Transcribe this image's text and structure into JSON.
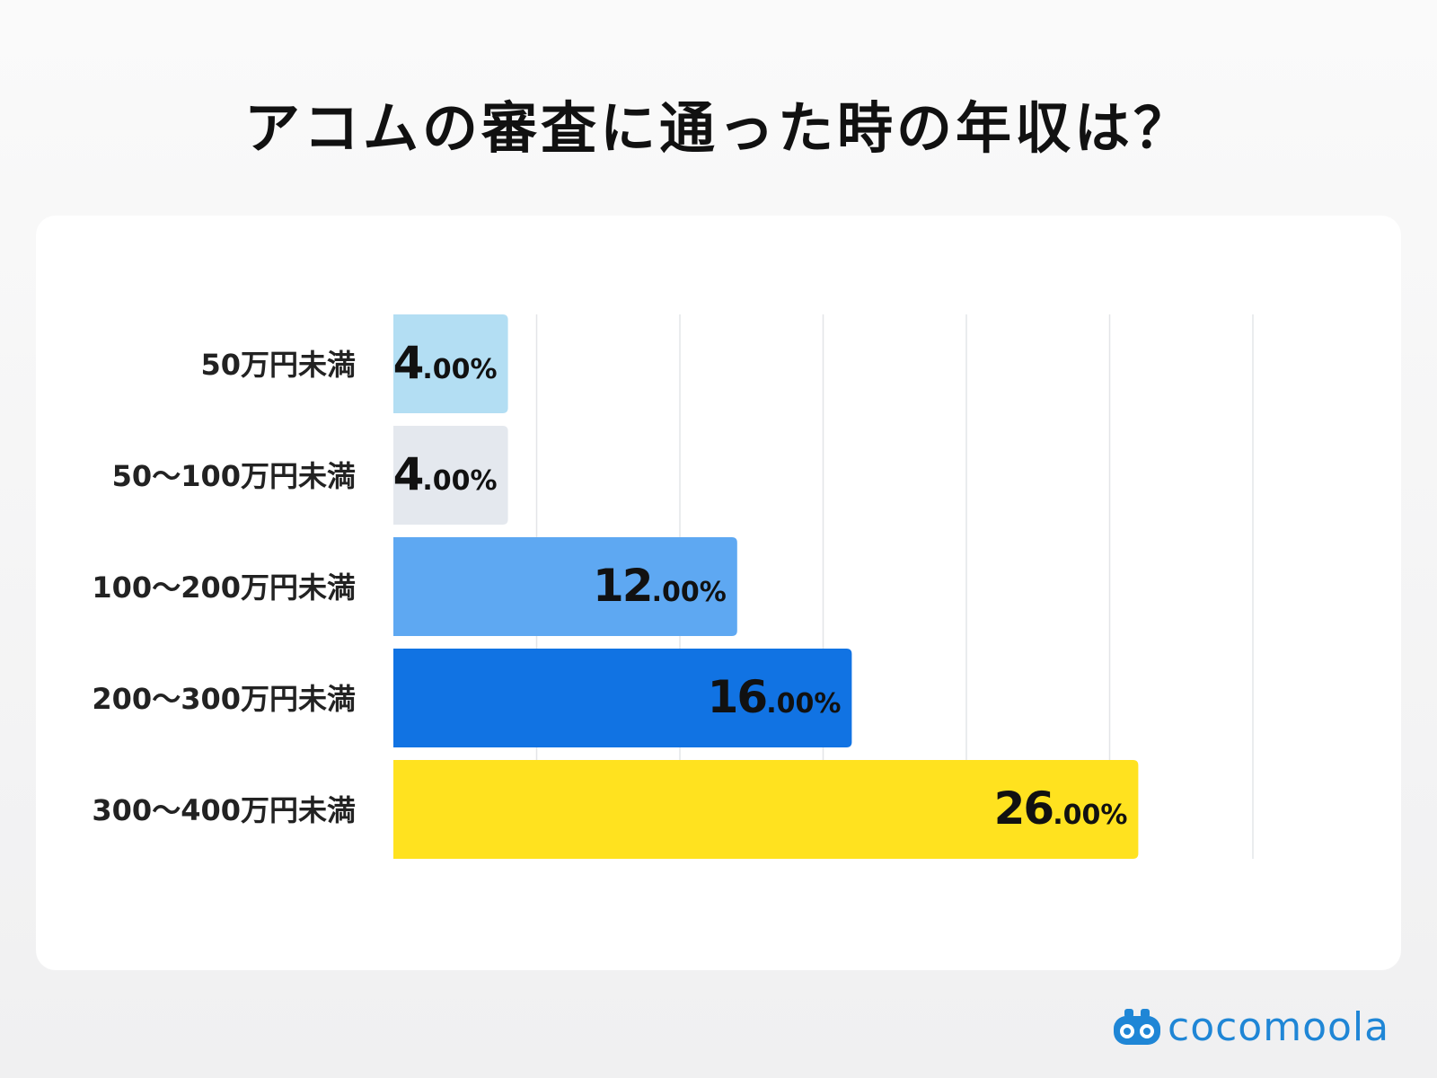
{
  "title": "アコムの審査に通った時の年収は？",
  "brand": {
    "name": "cocomoola",
    "icon": "binoculars-icon",
    "color": "#1f86d6"
  },
  "chart_data": {
    "type": "bar",
    "orientation": "horizontal",
    "categories": [
      "50万円未満",
      "50〜100万円未満",
      "100〜200万円未満",
      "200〜300万円未満",
      "300〜400万円未満"
    ],
    "values": [
      4.0,
      4.0,
      12.0,
      16.0,
      26.0
    ],
    "value_labels": [
      {
        "int": "4",
        "dec": ".00%"
      },
      {
        "int": "4",
        "dec": ".00%"
      },
      {
        "int": "12",
        "dec": ".00%"
      },
      {
        "int": "16",
        "dec": ".00%"
      },
      {
        "int": "26",
        "dec": ".00%"
      }
    ],
    "colors": [
      "#b3def3",
      "#e4e8ee",
      "#5ea8f2",
      "#1173e3",
      "#ffe21f"
    ],
    "xlim": [
      0,
      30
    ],
    "gridlines": [
      5,
      10,
      15,
      20,
      25,
      30
    ],
    "grid": true,
    "title": "",
    "xlabel": "",
    "ylabel": ""
  }
}
